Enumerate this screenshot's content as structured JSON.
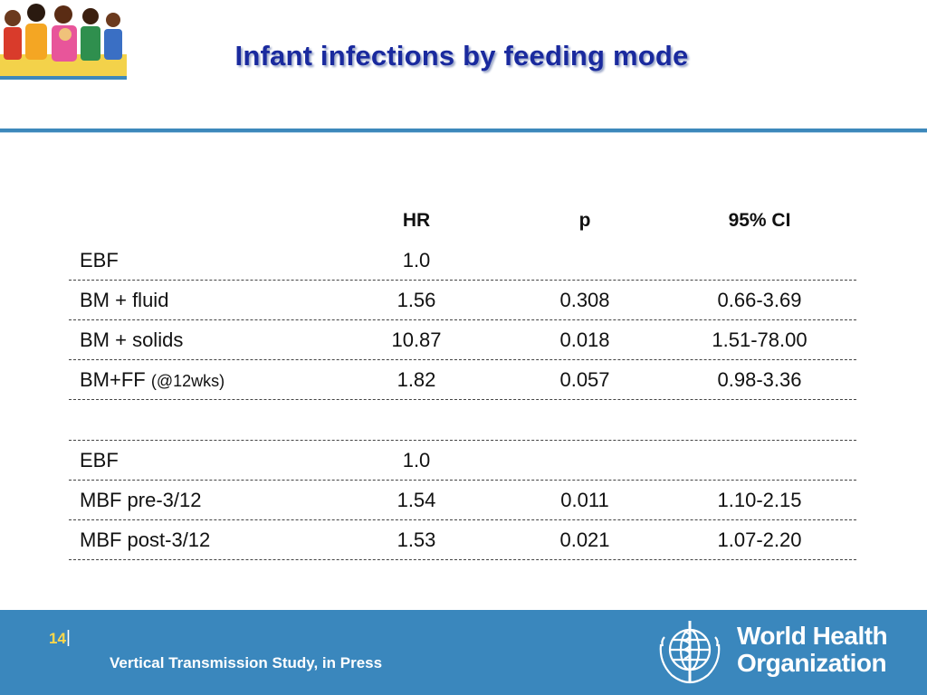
{
  "slide": {
    "title": "Infant infections by feeding mode",
    "page_number": "14",
    "page_separator": "|",
    "citation": "Vertical Transmission Study, in Press"
  },
  "table": {
    "headers": [
      "",
      "HR",
      "p",
      "95% CI"
    ],
    "rows": [
      {
        "label": "EBF",
        "label_note": "",
        "hr": "1.0",
        "p": "",
        "ci": ""
      },
      {
        "label": "BM + fluid",
        "label_note": "",
        "hr": "1.56",
        "p": "0.308",
        "ci": "0.66-3.69"
      },
      {
        "label": "BM + solids",
        "label_note": "",
        "hr": "10.87",
        "p": "0.018",
        "ci": "1.51-78.00"
      },
      {
        "label": "BM+FF",
        "label_note": "(@12wks)",
        "hr": "1.82",
        "p": "0.057",
        "ci": "0.98-3.36"
      },
      {
        "label": "",
        "label_note": "",
        "hr": "",
        "p": "",
        "ci": ""
      },
      {
        "label": "EBF",
        "label_note": "",
        "hr": "1.0",
        "p": "",
        "ci": ""
      },
      {
        "label": "MBF pre-3/12",
        "label_note": "",
        "hr": "1.54",
        "p": "0.011",
        "ci": "1.10-2.15"
      },
      {
        "label": "MBF post-3/12",
        "label_note": "",
        "hr": "1.53",
        "p": "0.021",
        "ci": "1.07-2.20"
      }
    ]
  },
  "logo": {
    "line1": "World Health",
    "line2": "Organization"
  },
  "colors": {
    "title": "#1a2a9e",
    "header_rule": "#3d88bb",
    "footer_bg": "#3a87bd",
    "page_number": "#ffd84a"
  },
  "icons": {
    "header_art": "family-illustration-icon",
    "logo": "who-emblem-icon"
  }
}
